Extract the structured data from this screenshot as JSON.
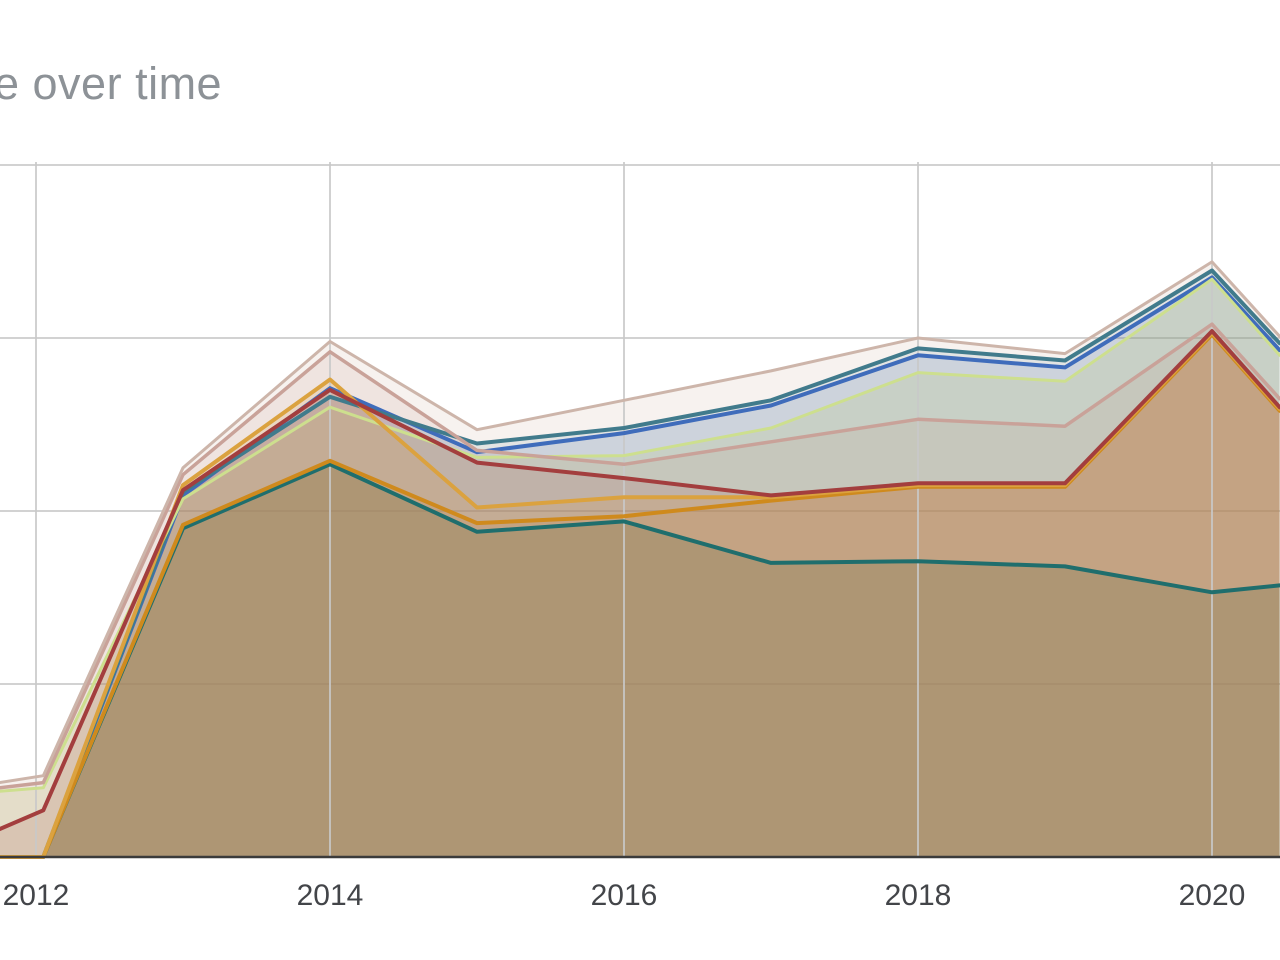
{
  "title": "e over time",
  "axis": {
    "x_tick_labels": [
      "2012",
      "2014",
      "2016",
      "2018",
      "2020"
    ],
    "x_tick_years": [
      2012,
      2014,
      2016,
      2018,
      2020
    ],
    "axis_line_color": "#3b3b3b",
    "gridline_color": "#d2d2d2",
    "label_color": "#434549"
  },
  "colors": {
    "title_gray": "#8d9297",
    "background": "#ffffff"
  },
  "chart_data": {
    "type": "area",
    "title": "e over time",
    "subtitle": "",
    "xlabel": "",
    "ylabel": "",
    "x_ticks_visible": [
      2012,
      2014,
      2016,
      2018,
      2020
    ],
    "y_axis": {
      "labels_visible": false,
      "gridline_unit": 1,
      "units_shown": [
        0,
        1,
        2,
        3,
        4
      ]
    },
    "grid": true,
    "legend": "none (cropped out of view)",
    "x": [
      2011.75,
      2012.05,
      2013,
      2014,
      2015,
      2016,
      2017,
      2018,
      2019,
      2020,
      2020.46
    ],
    "series": [
      {
        "name": "teal",
        "line_color": "#1f6e6d",
        "fill_color": "rgba(38,108,108,0.40)",
        "line_width": 4,
        "values": [
          0,
          0,
          1.9,
          2.27,
          1.88,
          1.94,
          1.7,
          1.71,
          1.68,
          1.53,
          1.57
        ]
      },
      {
        "name": "blue",
        "line_color": "#3f6cbb",
        "fill_color": "rgba(85,125,200,0.17)",
        "line_width": 4,
        "values": [
          0,
          0,
          2.09,
          2.71,
          2.34,
          2.45,
          2.61,
          2.9,
          2.83,
          3.35,
          2.93
        ]
      },
      {
        "name": "steel-teal",
        "line_color": "#417b8c",
        "fill_color": "rgba(65,123,140,0.12)",
        "line_width": 4,
        "values": [
          0,
          0,
          2.11,
          2.66,
          2.39,
          2.48,
          2.64,
          2.94,
          2.87,
          3.39,
          2.97
        ]
      },
      {
        "name": "lime",
        "line_color": "#cddf8e",
        "fill_color": "rgba(175,205,90,0.18)",
        "line_width": 3,
        "values": [
          0.38,
          0.4,
          2.07,
          2.6,
          2.31,
          2.32,
          2.48,
          2.8,
          2.75,
          3.34,
          2.9
        ]
      },
      {
        "name": "taupe-mid",
        "line_color": "#c9a299",
        "fill_color": "rgba(185,135,120,0.13)",
        "line_width": 3.5,
        "values": [
          0.4,
          0.43,
          2.21,
          2.92,
          2.35,
          2.27,
          2.4,
          2.53,
          2.49,
          3.08,
          2.65
        ]
      },
      {
        "name": "orange",
        "line_color": "#cf8a1d",
        "fill_color": "rgba(207,138,29,0.20)",
        "line_width": 4,
        "values": [
          0,
          0,
          1.92,
          2.29,
          1.93,
          1.97,
          2.06,
          2.14,
          2.14,
          3.02,
          2.58
        ]
      },
      {
        "name": "amber",
        "line_color": "#dba23f",
        "fill_color": "rgba(219,162,63,0.20)",
        "line_width": 4,
        "values": [
          0,
          0,
          2.15,
          2.76,
          2.02,
          2.08,
          2.08,
          2.15,
          2.15,
          3.03,
          2.59
        ]
      },
      {
        "name": "maroon",
        "line_color": "#a33e3e",
        "fill_color": "rgba(163,62,62,0.17)",
        "line_width": 4,
        "values": [
          0.16,
          0.27,
          2.12,
          2.7,
          2.28,
          2.19,
          2.09,
          2.16,
          2.16,
          3.04,
          2.6
        ]
      },
      {
        "name": "taupe-top",
        "line_color": "#cdb5aa",
        "fill_color": "rgba(200,165,150,0.15)",
        "line_width": 3,
        "values": [
          0.43,
          0.47,
          2.25,
          2.98,
          2.47,
          2.64,
          2.81,
          3.0,
          2.91,
          3.44,
          3.01
        ]
      }
    ]
  }
}
